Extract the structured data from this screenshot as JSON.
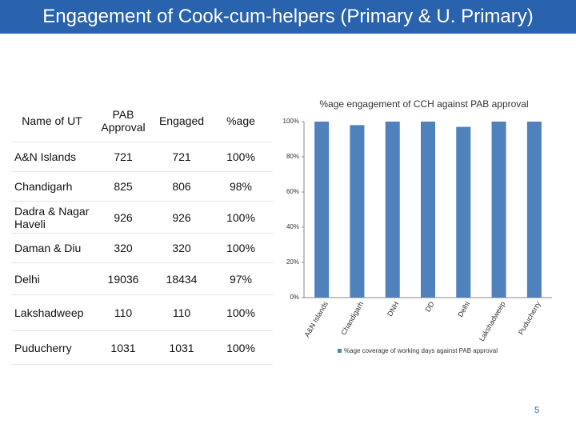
{
  "title": "Engagement of Cook-cum-helpers (Primary & U. Primary)",
  "table": {
    "header": [
      "Name of UT",
      "PAB Approval",
      "Engaged",
      "%age"
    ],
    "rows": [
      [
        "A&N Islands",
        "721",
        "721",
        "100%"
      ],
      [
        "Chandigarh",
        "825",
        "806",
        "98%"
      ],
      [
        "Dadra & Nagar Haveli",
        "926",
        "926",
        "100%"
      ],
      [
        "Daman & Diu",
        "320",
        "320",
        "100%"
      ],
      [
        "Delhi",
        "19036",
        "18434",
        "97%"
      ],
      [
        "Lakshadweep",
        "110",
        "110",
        "100%"
      ],
      [
        "Puducherry",
        "1031",
        "1031",
        "100%"
      ]
    ]
  },
  "chart_data": {
    "type": "bar",
    "title": "%age engagement of CCH against PAB approval",
    "categories": [
      "A&N Islands",
      "Chandigarh",
      "DNH",
      "DD",
      "Delhi",
      "Lakshadweep",
      "Puducherry"
    ],
    "series": [
      {
        "name": "%age coverage of working days against PAB approval",
        "color": "#4f81bd",
        "values": [
          100,
          98,
          100,
          100,
          97,
          100,
          100
        ]
      }
    ],
    "ylim": [
      0,
      100
    ],
    "yticks": [
      {
        "value": 0,
        "label": "0%"
      },
      {
        "value": 20,
        "label": "20%"
      },
      {
        "value": 40,
        "label": "40%"
      },
      {
        "value": 60,
        "label": "60%"
      },
      {
        "value": 80,
        "label": "80%"
      },
      {
        "value": 100,
        "label": "100%"
      }
    ],
    "grid": false,
    "legend": "bottom"
  },
  "page_number": "5"
}
